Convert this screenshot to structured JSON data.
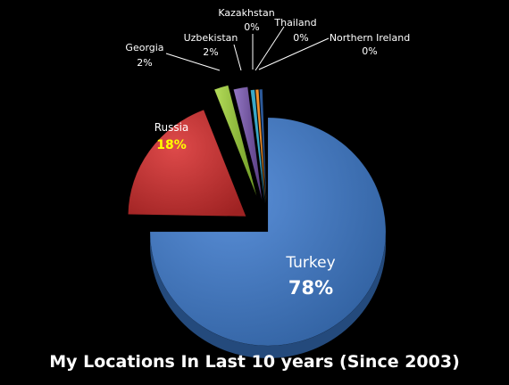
{
  "chart_data": {
    "type": "pie",
    "title": "My Locations In Last 10 years (Since 2003)",
    "slices": [
      {
        "name": "Turkey",
        "value": 78,
        "label": "78%",
        "color": "#4a7cc4"
      },
      {
        "name": "Russia",
        "value": 18,
        "label": "18%",
        "color": "#cc3434",
        "label_color": "#ffff00"
      },
      {
        "name": "Georgia",
        "value": 2,
        "label": "2%",
        "color": "#9bc83e"
      },
      {
        "name": "Uzbekistan",
        "value": 2,
        "label": "2%",
        "color": "#7a58a8"
      },
      {
        "name": "Kazakhstan",
        "value": 0,
        "label": "0%",
        "color": "#3aa8c8"
      },
      {
        "name": "Thailand",
        "value": 0,
        "label": "0%",
        "color": "#f0902c"
      },
      {
        "name": "Northern Ireland",
        "value": 0,
        "label": "0%",
        "color": "#2d5a9a"
      }
    ]
  }
}
